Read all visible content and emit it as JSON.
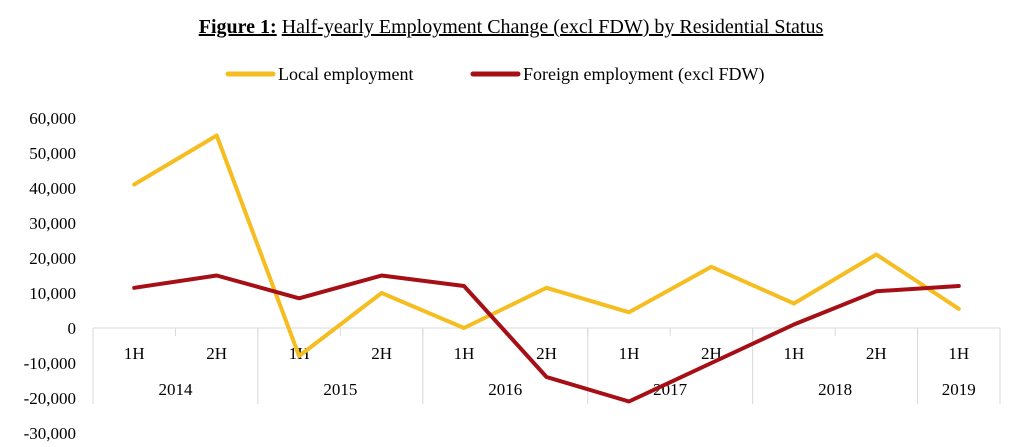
{
  "chart_data": {
    "type": "line",
    "title_prefix": "Figure 1:",
    "title": "Half-yearly Employment Change (excl FDW) by Residential Status",
    "categories": [
      "1H",
      "2H",
      "1H",
      "2H",
      "1H",
      "2H",
      "1H",
      "2H",
      "1H",
      "2H",
      "1H"
    ],
    "years": [
      {
        "label": "2014",
        "span": 2
      },
      {
        "label": "2015",
        "span": 2
      },
      {
        "label": "2016",
        "span": 2
      },
      {
        "label": "2017",
        "span": 2
      },
      {
        "label": "2018",
        "span": 2
      },
      {
        "label": "2019",
        "span": 1
      }
    ],
    "series": [
      {
        "name": "Local employment",
        "color": "#F5BD1F",
        "values": [
          41000,
          55000,
          -8000,
          10000,
          0,
          11500,
          4500,
          17500,
          7000,
          21000,
          5500
        ]
      },
      {
        "name": "Foreign employment (excl FDW)",
        "color": "#A50F15",
        "values": [
          11500,
          15000,
          8500,
          15000,
          12000,
          -14000,
          -21000,
          -10000,
          1000,
          10500,
          12000
        ]
      }
    ],
    "yticks": [
      "60,000",
      "50,000",
      "40,000",
      "30,000",
      "20,000",
      "10,000",
      "0",
      "-10,000",
      "-20,000",
      "-30,000"
    ],
    "ylim": [
      -30000,
      60000
    ],
    "legend_position": "top-center",
    "grid": false
  }
}
